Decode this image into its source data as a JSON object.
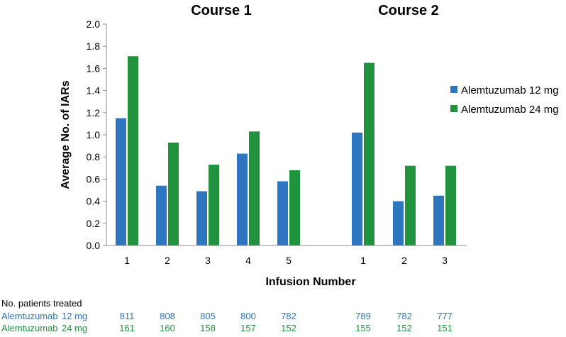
{
  "chart_data": {
    "type": "bar",
    "ylabel": "Average No. of IARs",
    "xlabel": "Infusion Number",
    "ylim": [
      0,
      2.0
    ],
    "yticks": [
      "0.0",
      "0.2",
      "0.4",
      "0.6",
      "0.8",
      "1.0",
      "1.2",
      "1.4",
      "1.6",
      "1.8",
      "2.0"
    ],
    "grid": false,
    "legend_position": "right",
    "colors": {
      "s12": "#2e75c0",
      "s24": "#21923e"
    },
    "groups": [
      {
        "title": "Course 1",
        "categories": [
          "1",
          "2",
          "3",
          "4",
          "5"
        ],
        "series": [
          {
            "name": "Alemtuzumab 12 mg",
            "values": [
              1.15,
              0.54,
              0.49,
              0.83,
              0.58
            ]
          },
          {
            "name": "Alemtuzumab 24 mg",
            "values": [
              1.71,
              0.93,
              0.73,
              1.03,
              0.68
            ]
          }
        ]
      },
      {
        "title": "Course 2",
        "categories": [
          "1",
          "2",
          "3"
        ],
        "series": [
          {
            "name": "Alemtuzumab 12 mg",
            "values": [
              1.02,
              0.4,
              0.45
            ]
          },
          {
            "name": "Alemtuzumab 24 mg",
            "values": [
              1.65,
              0.72,
              0.72
            ]
          }
        ]
      }
    ],
    "legend": [
      "Alemtuzumab 12 mg",
      "Alemtuzumab 24 mg"
    ]
  },
  "patients_table": {
    "header": "No. patients treated",
    "rows": [
      {
        "label": "Alemtuzumab 12 mg",
        "label_parts": [
          "Alemtuzumab",
          "12 mg"
        ],
        "course1": [
          "811",
          "808",
          "805",
          "800",
          "782"
        ],
        "course2": [
          "789",
          "782",
          "777"
        ]
      },
      {
        "label": "Alemtuzumab 24 mg",
        "label_parts": [
          "Alemtuzumab",
          "24 mg"
        ],
        "course1": [
          "161",
          "160",
          "158",
          "157",
          "152"
        ],
        "course2": [
          "155",
          "152",
          "151"
        ]
      }
    ]
  }
}
